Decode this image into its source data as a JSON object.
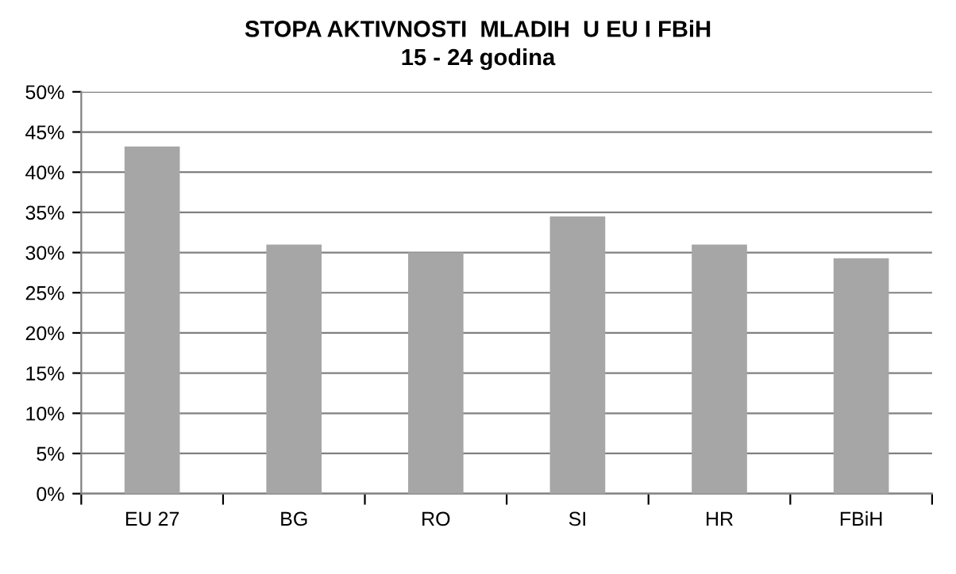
{
  "chart_data": {
    "type": "bar",
    "title": "STOPA AKTIVNOSTI  MLADIH  U EU I FBiH\n15 - 24 godina",
    "categories": [
      "EU 27",
      "BG",
      "RO",
      "SI",
      "HR",
      "FBiH"
    ],
    "values": [
      43.2,
      31,
      30,
      34.5,
      31,
      29.3
    ],
    "colors": [
      "#a6a6a6",
      "#a6a6a6",
      "#a6a6a6",
      "#a6a6a6",
      "#a6a6a6",
      "#a6a6a6"
    ],
    "ylim": [
      0,
      50
    ],
    "yticks": [
      {
        "value": 0,
        "label": "0%"
      },
      {
        "value": 5,
        "label": "5%"
      },
      {
        "value": 10,
        "label": "10%"
      },
      {
        "value": 15,
        "label": "15%"
      },
      {
        "value": 20,
        "label": "20%"
      },
      {
        "value": 25,
        "label": "25%"
      },
      {
        "value": 30,
        "label": "30%"
      },
      {
        "value": 35,
        "label": "35%"
      },
      {
        "value": 40,
        "label": "40%"
      },
      {
        "value": 45,
        "label": "45%"
      },
      {
        "value": 50,
        "label": "50%"
      }
    ],
    "grid": "y",
    "legend": false
  }
}
